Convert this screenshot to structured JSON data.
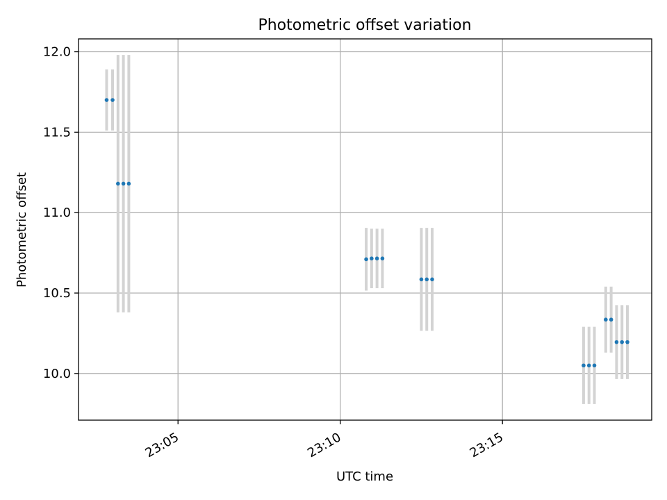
{
  "chart_data": {
    "type": "scatter",
    "title": "Photometric offset variation",
    "xlabel": "UTC time",
    "ylabel": "Photometric offset",
    "xlim": [
      "23:01:56",
      "23:19:36"
    ],
    "ylim": [
      9.71,
      12.08
    ],
    "grid": true,
    "x_ticks": [
      "23:05",
      "23:10",
      "23:15"
    ],
    "y_ticks": [
      "10.0",
      "10.5",
      "11.0",
      "11.5",
      "12.0"
    ],
    "colors": {
      "points": "#1f77b4",
      "errorbars": "#d3d3d3",
      "grid": "#b0b0b0"
    },
    "series": [
      {
        "x": [
          "23:02:48",
          "23:02:59",
          "23:03:09",
          "23:03:19",
          "23:03:29",
          "23:10:48",
          "23:10:58",
          "23:11:08",
          "23:11:18",
          "23:12:30",
          "23:12:40",
          "23:12:50",
          "23:17:30",
          "23:17:40",
          "23:17:50",
          "23:18:11",
          "23:18:21",
          "23:18:31",
          "23:18:41",
          "23:18:51"
        ],
        "y": [
          11.7,
          11.7,
          11.18,
          11.18,
          11.18,
          10.71,
          10.715,
          10.715,
          10.715,
          10.585,
          10.585,
          10.585,
          10.05,
          10.05,
          10.05,
          10.335,
          10.335,
          10.195,
          10.195,
          10.195
        ],
        "yerr": [
          0.19,
          0.19,
          0.8,
          0.8,
          0.8,
          0.195,
          0.185,
          0.185,
          0.185,
          0.32,
          0.32,
          0.32,
          0.24,
          0.24,
          0.24,
          0.205,
          0.205,
          0.23,
          0.23,
          0.23
        ]
      }
    ]
  }
}
